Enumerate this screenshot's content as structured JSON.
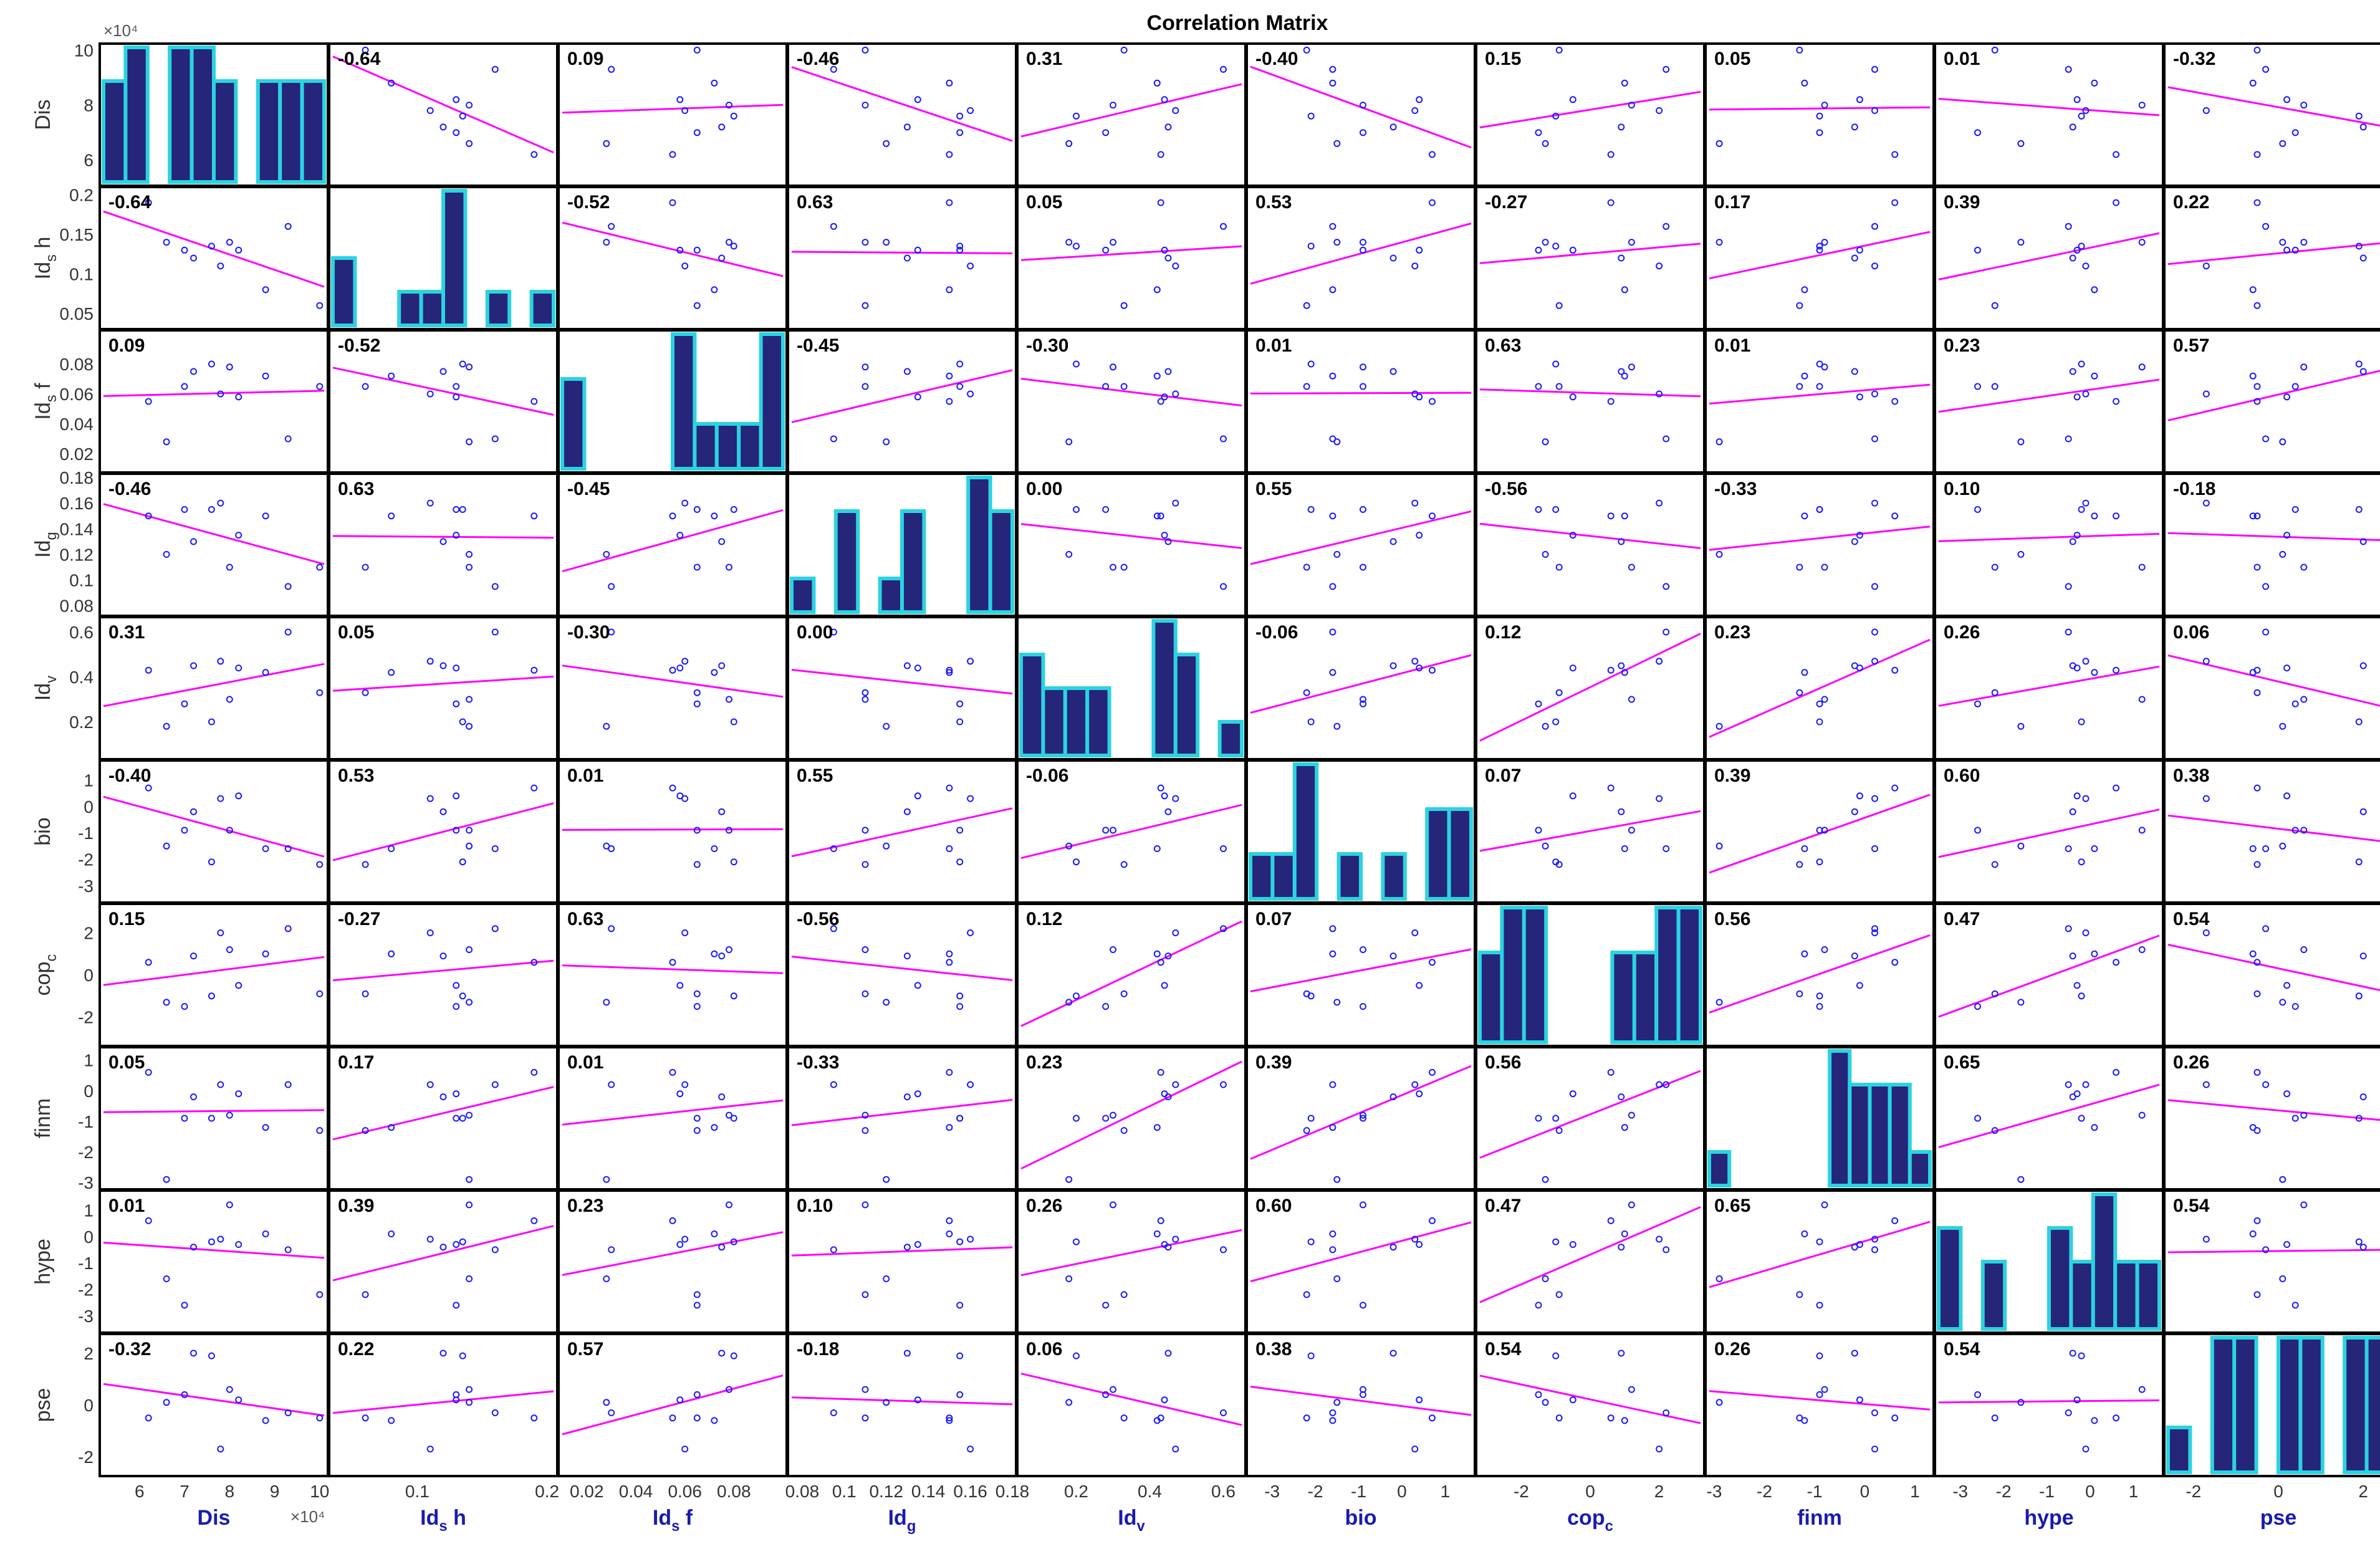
{
  "chart_data": {
    "type": "scatter_matrix",
    "title": "Correlation Matrix",
    "variables": [
      {
        "label": "Dis",
        "base": "Dis",
        "sub": "",
        "rest": "",
        "range": [
          52000,
          101000
        ],
        "yticks": [
          60000,
          80000,
          100000
        ],
        "yticklabels": [
          "6",
          "8",
          "10"
        ],
        "xticks": [
          60000,
          70000,
          80000,
          90000,
          100000
        ],
        "xticklabels": [
          "6",
          "7",
          "8",
          "9",
          "10"
        ],
        "exponent_top": "×10⁴",
        "exponent_bottom": "×10⁴"
      },
      {
        "label": "Id_s h",
        "base": "Id",
        "sub": "s",
        "rest": "h",
        "range": [
          0.035,
          0.205
        ],
        "yticks": [
          0.05,
          0.1,
          0.15,
          0.2
        ],
        "yticklabels": [
          "0.05",
          "0.1",
          "0.15",
          "0.2"
        ],
        "xticks": [
          0.1,
          0.2
        ],
        "xticklabels": [
          "0.1",
          "0.2"
        ]
      },
      {
        "label": "Id_s f",
        "base": "Id",
        "sub": "s",
        "rest": "f",
        "range": [
          0.01,
          0.1
        ],
        "yticks": [
          0.02,
          0.04,
          0.06,
          0.08
        ],
        "yticklabels": [
          "0.02",
          "0.04",
          "0.06",
          "0.08"
        ],
        "xticks": [
          0.02,
          0.04,
          0.06,
          0.08
        ],
        "xticklabels": [
          "0.02",
          "0.04",
          "0.06",
          "0.08"
        ]
      },
      {
        "label": "Id_g",
        "base": "Id",
        "sub": "g",
        "rest": "",
        "range": [
          0.075,
          0.18
        ],
        "yticks": [
          0.08,
          0.1,
          0.12,
          0.14,
          0.16,
          0.18
        ],
        "yticklabels": [
          "0.08",
          "0.1",
          "0.12",
          "0.14",
          "0.16",
          "0.18"
        ],
        "xticks": [
          0.08,
          0.1,
          0.12,
          0.14,
          0.16,
          0.18
        ],
        "xticklabels": [
          "0.08",
          "0.1",
          "0.12",
          "0.14",
          "0.16",
          "0.18"
        ]
      },
      {
        "label": "Id_v",
        "base": "Id",
        "sub": "v",
        "rest": "",
        "range": [
          0.05,
          0.65
        ],
        "yticks": [
          0.2,
          0.4,
          0.6
        ],
        "yticklabels": [
          "0.2",
          "0.4",
          "0.6"
        ],
        "xticks": [
          0.2,
          0.4,
          0.6
        ],
        "xticklabels": [
          "0.2",
          "0.4",
          "0.6"
        ]
      },
      {
        "label": "bio",
        "base": "bio",
        "sub": "",
        "rest": "",
        "range": [
          -3.5,
          1.6
        ],
        "yticks": [
          -3,
          -2,
          -1,
          0,
          1
        ],
        "yticklabels": [
          "-3",
          "-2",
          "-1",
          "0",
          "1"
        ],
        "xticks": [
          -3,
          -2,
          -1,
          0,
          1
        ],
        "xticklabels": [
          "-3",
          "-2",
          "-1",
          "0",
          "1"
        ]
      },
      {
        "label": "cop_c",
        "base": "cop",
        "sub": "c",
        "rest": "",
        "range": [
          -3.2,
          3.2
        ],
        "yticks": [
          -2,
          0,
          2
        ],
        "yticklabels": [
          "-2",
          "0",
          "2"
        ],
        "xticks": [
          -2,
          0,
          2
        ],
        "xticklabels": [
          "-2",
          "0",
          "2"
        ]
      },
      {
        "label": "finm",
        "base": "finm",
        "sub": "",
        "rest": "",
        "range": [
          -3.1,
          1.3
        ],
        "yticks": [
          -3,
          -2,
          -1,
          0,
          1
        ],
        "yticklabels": [
          "-3",
          "-2",
          "-1",
          "0",
          "1"
        ],
        "xticks": [
          -3,
          -2,
          -1,
          0,
          1
        ],
        "xticklabels": [
          "-3",
          "-2",
          "-1",
          "0",
          "1"
        ]
      },
      {
        "label": "hype",
        "base": "hype",
        "sub": "",
        "rest": "",
        "range": [
          -3.5,
          1.6
        ],
        "yticks": [
          -3,
          -2,
          -1,
          0,
          1
        ],
        "yticklabels": [
          "-3",
          "-2",
          "-1",
          "0",
          "1"
        ],
        "xticks": [
          -3,
          -2,
          -1,
          0,
          1
        ],
        "xticklabels": [
          "-3",
          "-2",
          "-1",
          "0",
          "1"
        ]
      },
      {
        "label": "pse",
        "base": "pse",
        "sub": "",
        "rest": "",
        "range": [
          -2.6,
          2.6
        ],
        "yticks": [
          -2,
          0,
          2
        ],
        "yticklabels": [
          "-2",
          "0",
          "2"
        ],
        "xticks": [
          -2,
          0,
          2
        ],
        "xticklabels": [
          "-2",
          "0",
          "2"
        ]
      }
    ],
    "correlations": [
      [
        "",
        "-0.64",
        "0.09",
        "-0.46",
        "0.31",
        "-0.40",
        "0.15",
        "0.05",
        "0.01",
        "-0.32"
      ],
      [
        "-0.64",
        "",
        "-0.52",
        "0.63",
        "0.05",
        "0.53",
        "-0.27",
        "0.17",
        "0.39",
        "0.22"
      ],
      [
        "0.09",
        "-0.52",
        "",
        "-0.45",
        "-0.30",
        "0.01",
        "0.63",
        "0.01",
        "0.23",
        "0.57"
      ],
      [
        "-0.46",
        "0.63",
        "-0.45",
        "",
        "0.00",
        "0.55",
        "-0.56",
        "-0.33",
        "0.10",
        "-0.18"
      ],
      [
        "0.31",
        "0.05",
        "-0.30",
        "0.00",
        "",
        "-0.06",
        "0.12",
        "0.23",
        "0.26",
        "0.06"
      ],
      [
        "-0.40",
        "0.53",
        "0.01",
        "0.55",
        "-0.06",
        "",
        "0.07",
        "0.39",
        "0.60",
        "0.38"
      ],
      [
        "0.15",
        "-0.27",
        "0.63",
        "-0.56",
        "0.12",
        "0.07",
        "",
        "0.56",
        "0.47",
        "0.54"
      ],
      [
        "0.05",
        "0.17",
        "0.01",
        "-0.33",
        "0.23",
        "0.39",
        "0.56",
        "",
        "0.65",
        "0.26"
      ],
      [
        "0.01",
        "0.39",
        "0.23",
        "0.10",
        "0.26",
        "0.60",
        "0.47",
        "0.65",
        "",
        "0.54"
      ],
      [
        "-0.32",
        "0.22",
        "0.57",
        "-0.18",
        "0.06",
        "0.38",
        "0.54",
        "0.26",
        "0.54",
        ""
      ]
    ],
    "observations": {
      "Dis": [
        62000,
        66000,
        70000,
        72000,
        76000,
        78000,
        80000,
        82000,
        88000,
        93000,
        100000
      ],
      "Id_s h": [
        0.19,
        0.14,
        0.13,
        0.12,
        0.135,
        0.11,
        0.14,
        0.13,
        0.08,
        0.16,
        0.06
      ],
      "Id_s f": [
        0.055,
        0.028,
        0.065,
        0.075,
        0.08,
        0.06,
        0.078,
        0.058,
        0.072,
        0.03,
        0.065
      ],
      "Id_g": [
        0.15,
        0.12,
        0.155,
        0.13,
        0.155,
        0.16,
        0.11,
        0.135,
        0.15,
        0.095,
        0.11
      ],
      "Id_v": [
        0.43,
        0.18,
        0.28,
        0.45,
        0.2,
        0.47,
        0.3,
        0.44,
        0.42,
        0.6,
        0.33
      ],
      "bio": [
        0.7,
        -1.5,
        -0.9,
        -0.2,
        -2.1,
        0.3,
        -0.9,
        0.4,
        -1.6,
        -1.6,
        -2.2
      ],
      "cop_c": [
        0.6,
        -1.3,
        -1.5,
        0.9,
        -1.0,
        2.0,
        1.2,
        -0.5,
        1.0,
        2.2,
        -0.9
      ],
      "finm": [
        0.6,
        -2.9,
        -0.9,
        -0.2,
        -0.9,
        0.2,
        -0.8,
        -0.1,
        -1.2,
        0.2,
        -1.3
      ],
      "hype": [
        0.6,
        -1.6,
        -2.6,
        -0.4,
        -0.2,
        -0.1,
        1.2,
        -0.3,
        0.1,
        -0.5,
        -2.2
      ],
      "pse": [
        -0.5,
        0.1,
        0.4,
        2.0,
        1.9,
        -1.7,
        0.6,
        0.2,
        -0.6,
        -0.3,
        -0.5
      ]
    },
    "histograms": {
      "Dis": [
        3,
        4,
        0,
        4,
        4,
        3,
        0,
        3,
        3,
        3
      ],
      "Id_s h": [
        2,
        0,
        0,
        1,
        1,
        4,
        0,
        1,
        0,
        1
      ],
      "Id_s f": [
        2,
        0,
        0,
        0,
        0,
        3,
        1,
        1,
        1,
        3
      ],
      "Id_g": [
        1,
        0,
        3,
        0,
        1,
        3,
        0,
        0,
        4,
        3
      ],
      "Id_v": [
        3,
        2,
        2,
        2,
        0,
        0,
        4,
        3,
        0,
        1
      ],
      "bio": [
        1,
        1,
        3,
        0,
        1,
        0,
        1,
        0,
        2,
        2
      ],
      "cop_c": [
        2,
        3,
        3,
        0,
        0,
        0,
        2,
        2,
        3,
        3
      ],
      "finm": [
        1,
        0,
        0,
        0,
        0,
        0,
        4,
        3,
        3,
        3,
        1
      ],
      "hype": [
        3,
        0,
        2,
        0,
        0,
        3,
        2,
        4,
        2,
        2
      ],
      "pse": [
        1,
        0,
        3,
        3,
        0,
        3,
        3,
        0,
        3,
        3
      ]
    },
    "colors": {
      "background": "#ffffff",
      "frame": "#000000",
      "point": "#1a1aff",
      "fit_line": "#ff00ff",
      "bar_fill": "#25257a",
      "bar_edge": "#2bd3e0",
      "tick_text": "#333333",
      "axis_label": "#1a1ab0"
    },
    "grid": false,
    "legend": "none"
  }
}
